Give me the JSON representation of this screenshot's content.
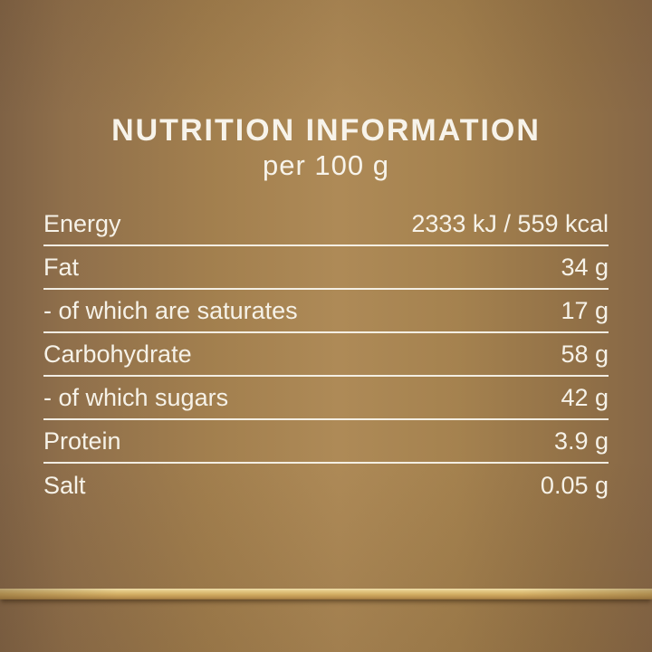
{
  "header": {
    "title": "NUTRITION INFORMATION",
    "subtitle": "per 100 g"
  },
  "table": {
    "rows": [
      {
        "label": "Energy",
        "value": "2333 kJ / 559 kcal"
      },
      {
        "label": "Fat",
        "value": "34 g"
      },
      {
        "label": "- of which are saturates",
        "value": "17 g"
      },
      {
        "label": "Carbohydrate",
        "value": "58 g"
      },
      {
        "label": "- of which sugars",
        "value": "42 g"
      },
      {
        "label": "Protein",
        "value": "3.9 g"
      },
      {
        "label": "Salt",
        "value": "0.05 g"
      }
    ]
  },
  "colors": {
    "background_edge": "#7f6245",
    "background_center": "#ae8a57",
    "text": "#f7f3ea",
    "divider": "#faf7f0",
    "gold_bar_light": "#f0e0ad",
    "gold_bar_dark": "#9a743e"
  }
}
